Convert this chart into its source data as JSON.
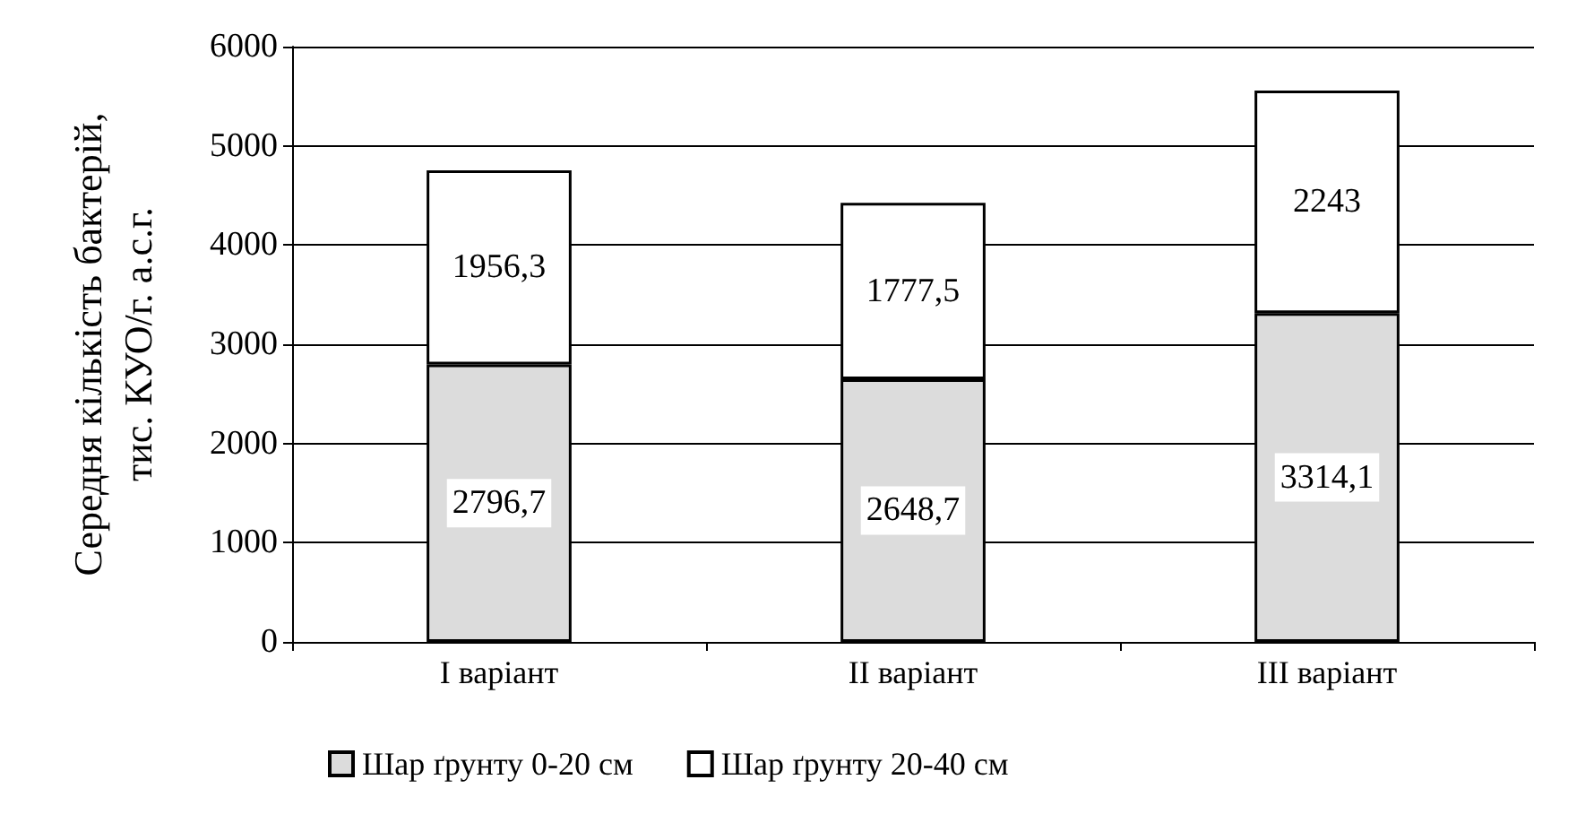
{
  "chart_data": {
    "type": "bar",
    "stacked": true,
    "ylabel": "Середня кількість бактерій,\nтис. КУО/г. а.с.г.",
    "categories": [
      "I варіант",
      "II варіант",
      "III варіант"
    ],
    "series": [
      {
        "name": "Шар ґрунту 0-20 см",
        "color": "#dcdcdc",
        "values": [
          2796.7,
          2648.7,
          3314.1
        ],
        "value_labels": [
          "2796,7",
          "2648,7",
          "3314,1"
        ]
      },
      {
        "name": "Шар ґрунту 20-40 см",
        "color": "#ffffff",
        "values": [
          1956.3,
          1777.5,
          2243
        ],
        "value_labels": [
          "1956,3",
          "1777,5",
          "2243"
        ]
      }
    ],
    "ylim": [
      0,
      6000
    ],
    "yticks": [
      0,
      1000,
      2000,
      3000,
      4000,
      5000,
      6000
    ],
    "grid": "y",
    "legend": "bottom"
  }
}
